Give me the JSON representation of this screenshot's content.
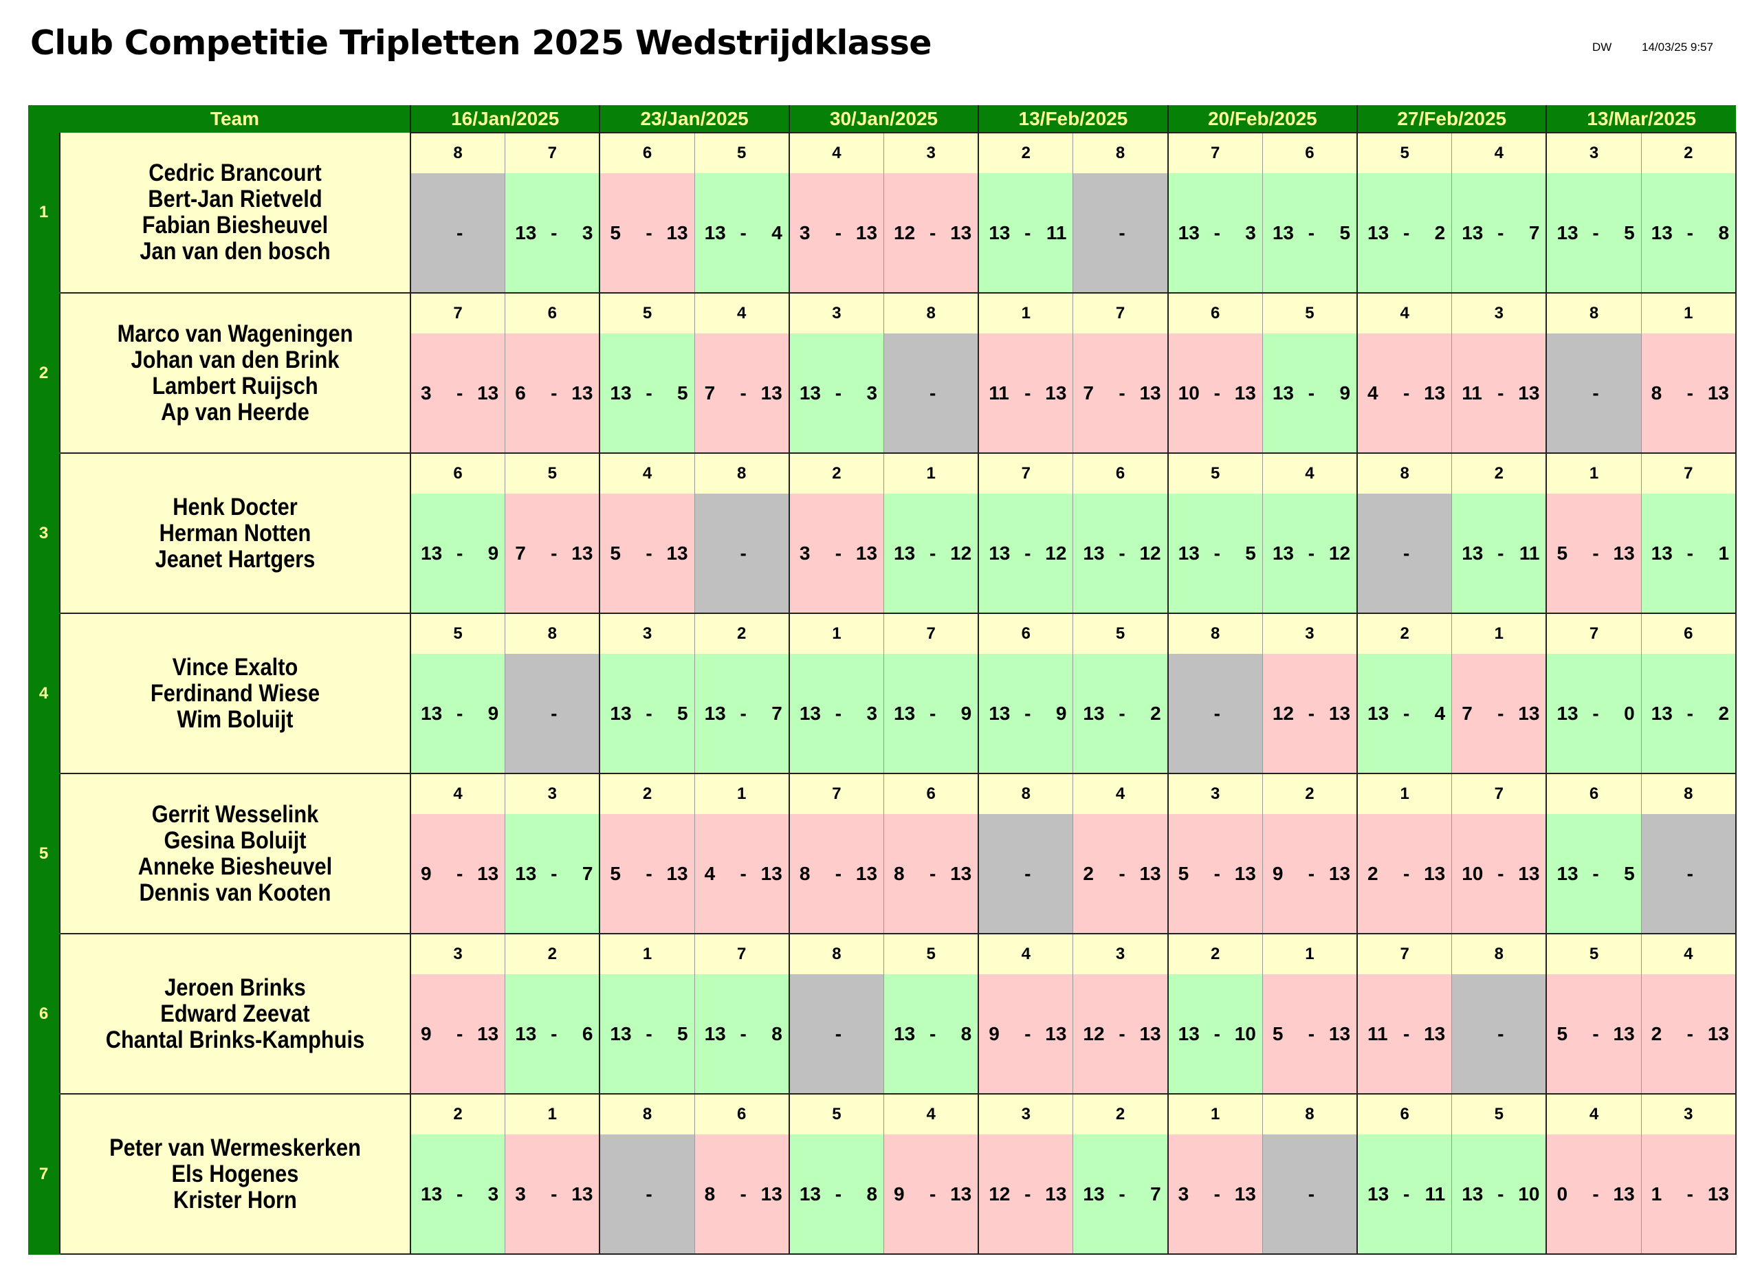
{
  "title": "Club Competitie Tripletten 2025 Wedstrijdklasse",
  "meta": {
    "user": "DW",
    "printed": "14/03/25 9:57"
  },
  "columns": {
    "team_header": "Team",
    "dates": [
      "16/Jan/2025",
      "23/Jan/2025",
      "30/Jan/2025",
      "13/Feb/2025",
      "20/Feb/2025",
      "27/Feb/2025",
      "13/Mar/2025"
    ]
  },
  "colors": {
    "header": "#078007",
    "header_text": "#ffff99",
    "team_bg": "#ffffcc",
    "win": "#bbffbb",
    "loss": "#ffcccc",
    "bye": "#c0c0c0"
  },
  "teams": [
    {
      "number": "1",
      "players": [
        "Cedric Brancourt",
        "Bert-Jan Rietveld",
        "Fabian Biesheuvel",
        "Jan van den bosch"
      ],
      "games": [
        {
          "opp": "8",
          "score": [
            "",
            "-",
            ""
          ],
          "result": "bye"
        },
        {
          "opp": "7",
          "score": [
            "13",
            "-",
            "3"
          ],
          "result": "win"
        },
        {
          "opp": "6",
          "score": [
            "5",
            "-",
            "13"
          ],
          "result": "loss"
        },
        {
          "opp": "5",
          "score": [
            "13",
            "-",
            "4"
          ],
          "result": "win"
        },
        {
          "opp": "4",
          "score": [
            "3",
            "-",
            "13"
          ],
          "result": "loss"
        },
        {
          "opp": "3",
          "score": [
            "12",
            "-",
            "13"
          ],
          "result": "loss"
        },
        {
          "opp": "2",
          "score": [
            "13",
            "-",
            "11"
          ],
          "result": "win"
        },
        {
          "opp": "8",
          "score": [
            "",
            "-",
            ""
          ],
          "result": "bye"
        },
        {
          "opp": "7",
          "score": [
            "13",
            "-",
            "3"
          ],
          "result": "win"
        },
        {
          "opp": "6",
          "score": [
            "13",
            "-",
            "5"
          ],
          "result": "win"
        },
        {
          "opp": "5",
          "score": [
            "13",
            "-",
            "2"
          ],
          "result": "win"
        },
        {
          "opp": "4",
          "score": [
            "13",
            "-",
            "7"
          ],
          "result": "win"
        },
        {
          "opp": "3",
          "score": [
            "13",
            "-",
            "5"
          ],
          "result": "win"
        },
        {
          "opp": "2",
          "score": [
            "13",
            "-",
            "8"
          ],
          "result": "win"
        }
      ]
    },
    {
      "number": "2",
      "players": [
        "Marco van Wageningen",
        "Johan van den Brink",
        "Lambert Ruijsch",
        "Ap van Heerde"
      ],
      "games": [
        {
          "opp": "7",
          "score": [
            "3",
            "-",
            "13"
          ],
          "result": "loss"
        },
        {
          "opp": "6",
          "score": [
            "6",
            "-",
            "13"
          ],
          "result": "loss"
        },
        {
          "opp": "5",
          "score": [
            "13",
            "-",
            "5"
          ],
          "result": "win"
        },
        {
          "opp": "4",
          "score": [
            "7",
            "-",
            "13"
          ],
          "result": "loss"
        },
        {
          "opp": "3",
          "score": [
            "13",
            "-",
            "3"
          ],
          "result": "win"
        },
        {
          "opp": "8",
          "score": [
            "",
            "-",
            ""
          ],
          "result": "bye"
        },
        {
          "opp": "1",
          "score": [
            "11",
            "-",
            "13"
          ],
          "result": "loss"
        },
        {
          "opp": "7",
          "score": [
            "7",
            "-",
            "13"
          ],
          "result": "loss"
        },
        {
          "opp": "6",
          "score": [
            "10",
            "-",
            "13"
          ],
          "result": "loss"
        },
        {
          "opp": "5",
          "score": [
            "13",
            "-",
            "9"
          ],
          "result": "win"
        },
        {
          "opp": "4",
          "score": [
            "4",
            "-",
            "13"
          ],
          "result": "loss"
        },
        {
          "opp": "3",
          "score": [
            "11",
            "-",
            "13"
          ],
          "result": "loss"
        },
        {
          "opp": "8",
          "score": [
            "",
            "-",
            ""
          ],
          "result": "bye"
        },
        {
          "opp": "1",
          "score": [
            "8",
            "-",
            "13"
          ],
          "result": "loss"
        }
      ]
    },
    {
      "number": "3",
      "players": [
        "Henk Docter",
        "Herman Notten",
        "Jeanet Hartgers"
      ],
      "games": [
        {
          "opp": "6",
          "score": [
            "13",
            "-",
            "9"
          ],
          "result": "win"
        },
        {
          "opp": "5",
          "score": [
            "7",
            "-",
            "13"
          ],
          "result": "loss"
        },
        {
          "opp": "4",
          "score": [
            "5",
            "-",
            "13"
          ],
          "result": "loss"
        },
        {
          "opp": "8",
          "score": [
            "",
            "-",
            ""
          ],
          "result": "bye"
        },
        {
          "opp": "2",
          "score": [
            "3",
            "-",
            "13"
          ],
          "result": "loss"
        },
        {
          "opp": "1",
          "score": [
            "13",
            "-",
            "12"
          ],
          "result": "win"
        },
        {
          "opp": "7",
          "score": [
            "13",
            "-",
            "12"
          ],
          "result": "win"
        },
        {
          "opp": "6",
          "score": [
            "13",
            "-",
            "12"
          ],
          "result": "win"
        },
        {
          "opp": "5",
          "score": [
            "13",
            "-",
            "5"
          ],
          "result": "win"
        },
        {
          "opp": "4",
          "score": [
            "13",
            "-",
            "12"
          ],
          "result": "win"
        },
        {
          "opp": "8",
          "score": [
            "",
            "-",
            ""
          ],
          "result": "bye"
        },
        {
          "opp": "2",
          "score": [
            "13",
            "-",
            "11"
          ],
          "result": "win"
        },
        {
          "opp": "1",
          "score": [
            "5",
            "-",
            "13"
          ],
          "result": "loss"
        },
        {
          "opp": "7",
          "score": [
            "13",
            "-",
            "1"
          ],
          "result": "win"
        }
      ]
    },
    {
      "number": "4",
      "players": [
        "Vince Exalto",
        "Ferdinand Wiese",
        "Wim Boluijt"
      ],
      "games": [
        {
          "opp": "5",
          "score": [
            "13",
            "-",
            "9"
          ],
          "result": "win"
        },
        {
          "opp": "8",
          "score": [
            "",
            "-",
            ""
          ],
          "result": "bye"
        },
        {
          "opp": "3",
          "score": [
            "13",
            "-",
            "5"
          ],
          "result": "win"
        },
        {
          "opp": "2",
          "score": [
            "13",
            "-",
            "7"
          ],
          "result": "win"
        },
        {
          "opp": "1",
          "score": [
            "13",
            "-",
            "3"
          ],
          "result": "win"
        },
        {
          "opp": "7",
          "score": [
            "13",
            "-",
            "9"
          ],
          "result": "win"
        },
        {
          "opp": "6",
          "score": [
            "13",
            "-",
            "9"
          ],
          "result": "win"
        },
        {
          "opp": "5",
          "score": [
            "13",
            "-",
            "2"
          ],
          "result": "win"
        },
        {
          "opp": "8",
          "score": [
            "",
            "-",
            ""
          ],
          "result": "bye"
        },
        {
          "opp": "3",
          "score": [
            "12",
            "-",
            "13"
          ],
          "result": "loss"
        },
        {
          "opp": "2",
          "score": [
            "13",
            "-",
            "4"
          ],
          "result": "win"
        },
        {
          "opp": "1",
          "score": [
            "7",
            "-",
            "13"
          ],
          "result": "loss"
        },
        {
          "opp": "7",
          "score": [
            "13",
            "-",
            "0"
          ],
          "result": "win"
        },
        {
          "opp": "6",
          "score": [
            "13",
            "-",
            "2"
          ],
          "result": "win"
        }
      ]
    },
    {
      "number": "5",
      "players": [
        "Gerrit Wesselink",
        "Gesina Boluijt",
        "Anneke Biesheuvel",
        "Dennis van Kooten"
      ],
      "games": [
        {
          "opp": "4",
          "score": [
            "9",
            "-",
            "13"
          ],
          "result": "loss"
        },
        {
          "opp": "3",
          "score": [
            "13",
            "-",
            "7"
          ],
          "result": "win"
        },
        {
          "opp": "2",
          "score": [
            "5",
            "-",
            "13"
          ],
          "result": "loss"
        },
        {
          "opp": "1",
          "score": [
            "4",
            "-",
            "13"
          ],
          "result": "loss"
        },
        {
          "opp": "7",
          "score": [
            "8",
            "-",
            "13"
          ],
          "result": "loss"
        },
        {
          "opp": "6",
          "score": [
            "8",
            "-",
            "13"
          ],
          "result": "loss"
        },
        {
          "opp": "8",
          "score": [
            "",
            "-",
            ""
          ],
          "result": "bye"
        },
        {
          "opp": "4",
          "score": [
            "2",
            "-",
            "13"
          ],
          "result": "loss"
        },
        {
          "opp": "3",
          "score": [
            "5",
            "-",
            "13"
          ],
          "result": "loss"
        },
        {
          "opp": "2",
          "score": [
            "9",
            "-",
            "13"
          ],
          "result": "loss"
        },
        {
          "opp": "1",
          "score": [
            "2",
            "-",
            "13"
          ],
          "result": "loss"
        },
        {
          "opp": "7",
          "score": [
            "10",
            "-",
            "13"
          ],
          "result": "loss"
        },
        {
          "opp": "6",
          "score": [
            "13",
            "-",
            "5"
          ],
          "result": "win"
        },
        {
          "opp": "8",
          "score": [
            "",
            "-",
            ""
          ],
          "result": "bye"
        }
      ]
    },
    {
      "number": "6",
      "players": [
        "Jeroen Brinks",
        "Edward Zeevat",
        "Chantal Brinks-Kamphuis"
      ],
      "games": [
        {
          "opp": "3",
          "score": [
            "9",
            "-",
            "13"
          ],
          "result": "loss"
        },
        {
          "opp": "2",
          "score": [
            "13",
            "-",
            "6"
          ],
          "result": "win"
        },
        {
          "opp": "1",
          "score": [
            "13",
            "-",
            "5"
          ],
          "result": "win"
        },
        {
          "opp": "7",
          "score": [
            "13",
            "-",
            "8"
          ],
          "result": "win"
        },
        {
          "opp": "8",
          "score": [
            "",
            "-",
            ""
          ],
          "result": "bye"
        },
        {
          "opp": "5",
          "score": [
            "13",
            "-",
            "8"
          ],
          "result": "win"
        },
        {
          "opp": "4",
          "score": [
            "9",
            "-",
            "13"
          ],
          "result": "loss"
        },
        {
          "opp": "3",
          "score": [
            "12",
            "-",
            "13"
          ],
          "result": "loss"
        },
        {
          "opp": "2",
          "score": [
            "13",
            "-",
            "10"
          ],
          "result": "win"
        },
        {
          "opp": "1",
          "score": [
            "5",
            "-",
            "13"
          ],
          "result": "loss"
        },
        {
          "opp": "7",
          "score": [
            "11",
            "-",
            "13"
          ],
          "result": "loss"
        },
        {
          "opp": "8",
          "score": [
            "",
            "-",
            ""
          ],
          "result": "bye"
        },
        {
          "opp": "5",
          "score": [
            "5",
            "-",
            "13"
          ],
          "result": "loss"
        },
        {
          "opp": "4",
          "score": [
            "2",
            "-",
            "13"
          ],
          "result": "loss"
        }
      ]
    },
    {
      "number": "7",
      "players": [
        "Peter van Wermeskerken",
        "Els Hogenes",
        "Krister Horn"
      ],
      "games": [
        {
          "opp": "2",
          "score": [
            "13",
            "-",
            "3"
          ],
          "result": "win"
        },
        {
          "opp": "1",
          "score": [
            "3",
            "-",
            "13"
          ],
          "result": "loss"
        },
        {
          "opp": "8",
          "score": [
            "",
            "-",
            ""
          ],
          "result": "bye"
        },
        {
          "opp": "6",
          "score": [
            "8",
            "-",
            "13"
          ],
          "result": "loss"
        },
        {
          "opp": "5",
          "score": [
            "13",
            "-",
            "8"
          ],
          "result": "win"
        },
        {
          "opp": "4",
          "score": [
            "9",
            "-",
            "13"
          ],
          "result": "loss"
        },
        {
          "opp": "3",
          "score": [
            "12",
            "-",
            "13"
          ],
          "result": "loss"
        },
        {
          "opp": "2",
          "score": [
            "13",
            "-",
            "7"
          ],
          "result": "win"
        },
        {
          "opp": "1",
          "score": [
            "3",
            "-",
            "13"
          ],
          "result": "loss"
        },
        {
          "opp": "8",
          "score": [
            "",
            "-",
            ""
          ],
          "result": "bye"
        },
        {
          "opp": "6",
          "score": [
            "13",
            "-",
            "11"
          ],
          "result": "win"
        },
        {
          "opp": "5",
          "score": [
            "13",
            "-",
            "10"
          ],
          "result": "win"
        },
        {
          "opp": "4",
          "score": [
            "0",
            "-",
            "13"
          ],
          "result": "loss"
        },
        {
          "opp": "3",
          "score": [
            "1",
            "-",
            "13"
          ],
          "result": "loss"
        }
      ]
    }
  ]
}
